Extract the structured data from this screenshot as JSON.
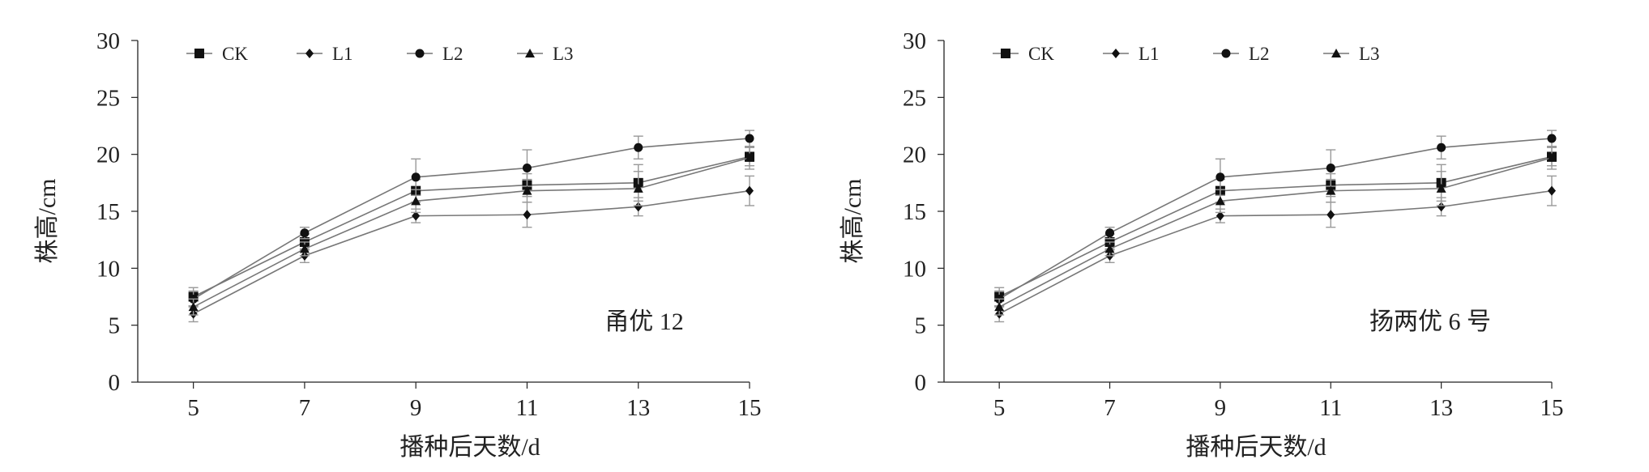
{
  "colors": {
    "axis": "#222222",
    "line": "#777777",
    "marker": "#111111",
    "error_bar": "#999999"
  },
  "chart_data": [
    {
      "type": "line",
      "title": "",
      "annotation": "甬优 12",
      "xlabel": "播种后天数/d",
      "ylabel": "株高/cm",
      "x": [
        5,
        7,
        9,
        11,
        13,
        15
      ],
      "x_ticks": [
        "5",
        "7",
        "9",
        "11",
        "13",
        "15"
      ],
      "y_ticks": [
        "0",
        "5",
        "10",
        "15",
        "20",
        "25",
        "30"
      ],
      "ylim": [
        0,
        30
      ],
      "xlim": [
        4,
        15
      ],
      "grid": false,
      "legend_position": "top-left",
      "series": [
        {
          "name": "CK",
          "marker": "square",
          "values": [
            7.5,
            12.3,
            16.8,
            17.3,
            17.5,
            19.8
          ],
          "errors": [
            0.8,
            0.7,
            1.0,
            1.0,
            1.6,
            0.8
          ]
        },
        {
          "name": "L1",
          "marker": "diamond",
          "values": [
            6.0,
            11.1,
            14.6,
            14.7,
            15.4,
            16.8
          ],
          "errors": [
            0.7,
            0.6,
            0.6,
            1.1,
            0.8,
            1.3
          ]
        },
        {
          "name": "L2",
          "marker": "circle",
          "values": [
            7.3,
            13.1,
            18.0,
            18.8,
            20.6,
            21.4
          ],
          "errors": [
            0.7,
            0.5,
            1.6,
            1.6,
            1.0,
            0.7
          ]
        },
        {
          "name": "L3",
          "marker": "triangle",
          "values": [
            6.6,
            11.7,
            15.9,
            16.8,
            17.0,
            19.7
          ],
          "errors": [
            0.7,
            0.6,
            1.0,
            1.0,
            1.5,
            1.0
          ]
        }
      ]
    },
    {
      "type": "line",
      "title": "",
      "annotation": "扬两优 6 号",
      "xlabel": "播种后天数/d",
      "ylabel": "株高/cm",
      "x": [
        5,
        7,
        9,
        11,
        13,
        15
      ],
      "x_ticks": [
        "5",
        "7",
        "9",
        "11",
        "13",
        "15"
      ],
      "y_ticks": [
        "0",
        "5",
        "10",
        "15",
        "20",
        "25",
        "30"
      ],
      "ylim": [
        0,
        30
      ],
      "xlim": [
        4,
        15
      ],
      "grid": false,
      "legend_position": "top-left",
      "series": [
        {
          "name": "CK",
          "marker": "square",
          "values": [
            7.5,
            12.3,
            16.8,
            17.3,
            17.5,
            19.8
          ],
          "errors": [
            0.8,
            0.7,
            1.0,
            1.0,
            1.6,
            0.8
          ]
        },
        {
          "name": "L1",
          "marker": "diamond",
          "values": [
            6.0,
            11.1,
            14.6,
            14.7,
            15.4,
            16.8
          ],
          "errors": [
            0.7,
            0.6,
            0.6,
            1.1,
            0.8,
            1.3
          ]
        },
        {
          "name": "L2",
          "marker": "circle",
          "values": [
            7.3,
            13.1,
            18.0,
            18.8,
            20.6,
            21.4
          ],
          "errors": [
            0.7,
            0.5,
            1.6,
            1.6,
            1.0,
            0.7
          ]
        },
        {
          "name": "L3",
          "marker": "triangle",
          "values": [
            6.6,
            11.7,
            15.9,
            16.8,
            17.0,
            19.7
          ],
          "errors": [
            0.7,
            0.6,
            1.0,
            1.0,
            1.5,
            1.0
          ]
        }
      ]
    }
  ]
}
